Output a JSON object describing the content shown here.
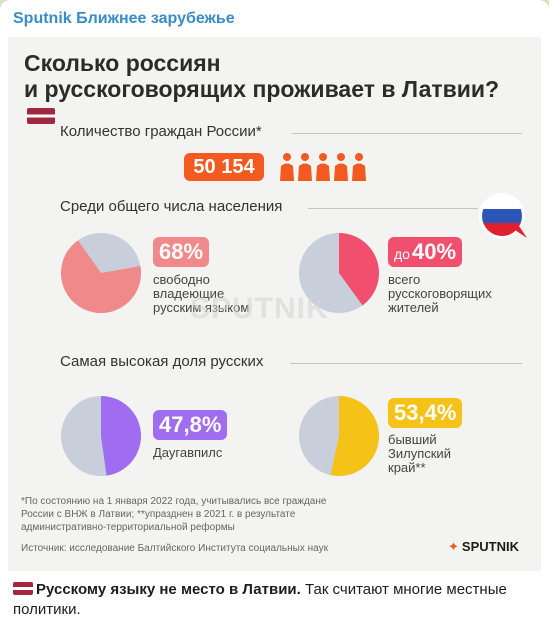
{
  "channel": {
    "name": "Sputnik Ближнее зарубежье"
  },
  "infographic": {
    "title_line1": "Сколько россиян",
    "title_line2": "и русскоговорящих проживает в Латвии?",
    "sec1_title": "Количество граждан России*",
    "citizens_count": "50 154",
    "sec2_title": "Среди общего числа населения",
    "stat1_pct": "68%",
    "stat1_desc": [
      "свободно",
      "владеющие",
      "русским языком"
    ],
    "stat2_prefix": "до",
    "stat2_pct": "40%",
    "stat2_desc": [
      "всего",
      "русскоговорящих",
      "жителей"
    ],
    "sec3_title": "Самая высокая доля русских",
    "stat3_pct": "47,8%",
    "stat3_desc": "Даугавпилс",
    "stat4_pct": "53,4%",
    "stat4_desc": [
      "бывший",
      "Зилупский",
      "край**"
    ],
    "footnote": [
      "*По состоянию на 1 января 2022 года, учитывались все граждане",
      "России с ВНЖ в Латвии; **упразднен в 2021 г. в результате",
      "административно-территориальной реформы"
    ],
    "source": "Источник: исследование Балтийского Института социальных наук",
    "logo": "SPUTNIK",
    "watermark": "SPUTNIK"
  },
  "charts": {
    "stat1_value": 68,
    "stat2_value": 40,
    "stat3_value": 47.8,
    "stat4_value": 53.4,
    "colors": {
      "base": "#c9cedb",
      "pink": "#f08a8a",
      "red": "#f0506e",
      "purple": "#a06cf0",
      "yellow": "#f5c218",
      "orange": "#f25a22"
    }
  },
  "caption": {
    "bold": "Русскому языку не место в Латвии.",
    "rest": " Так считают многие местные политики."
  }
}
